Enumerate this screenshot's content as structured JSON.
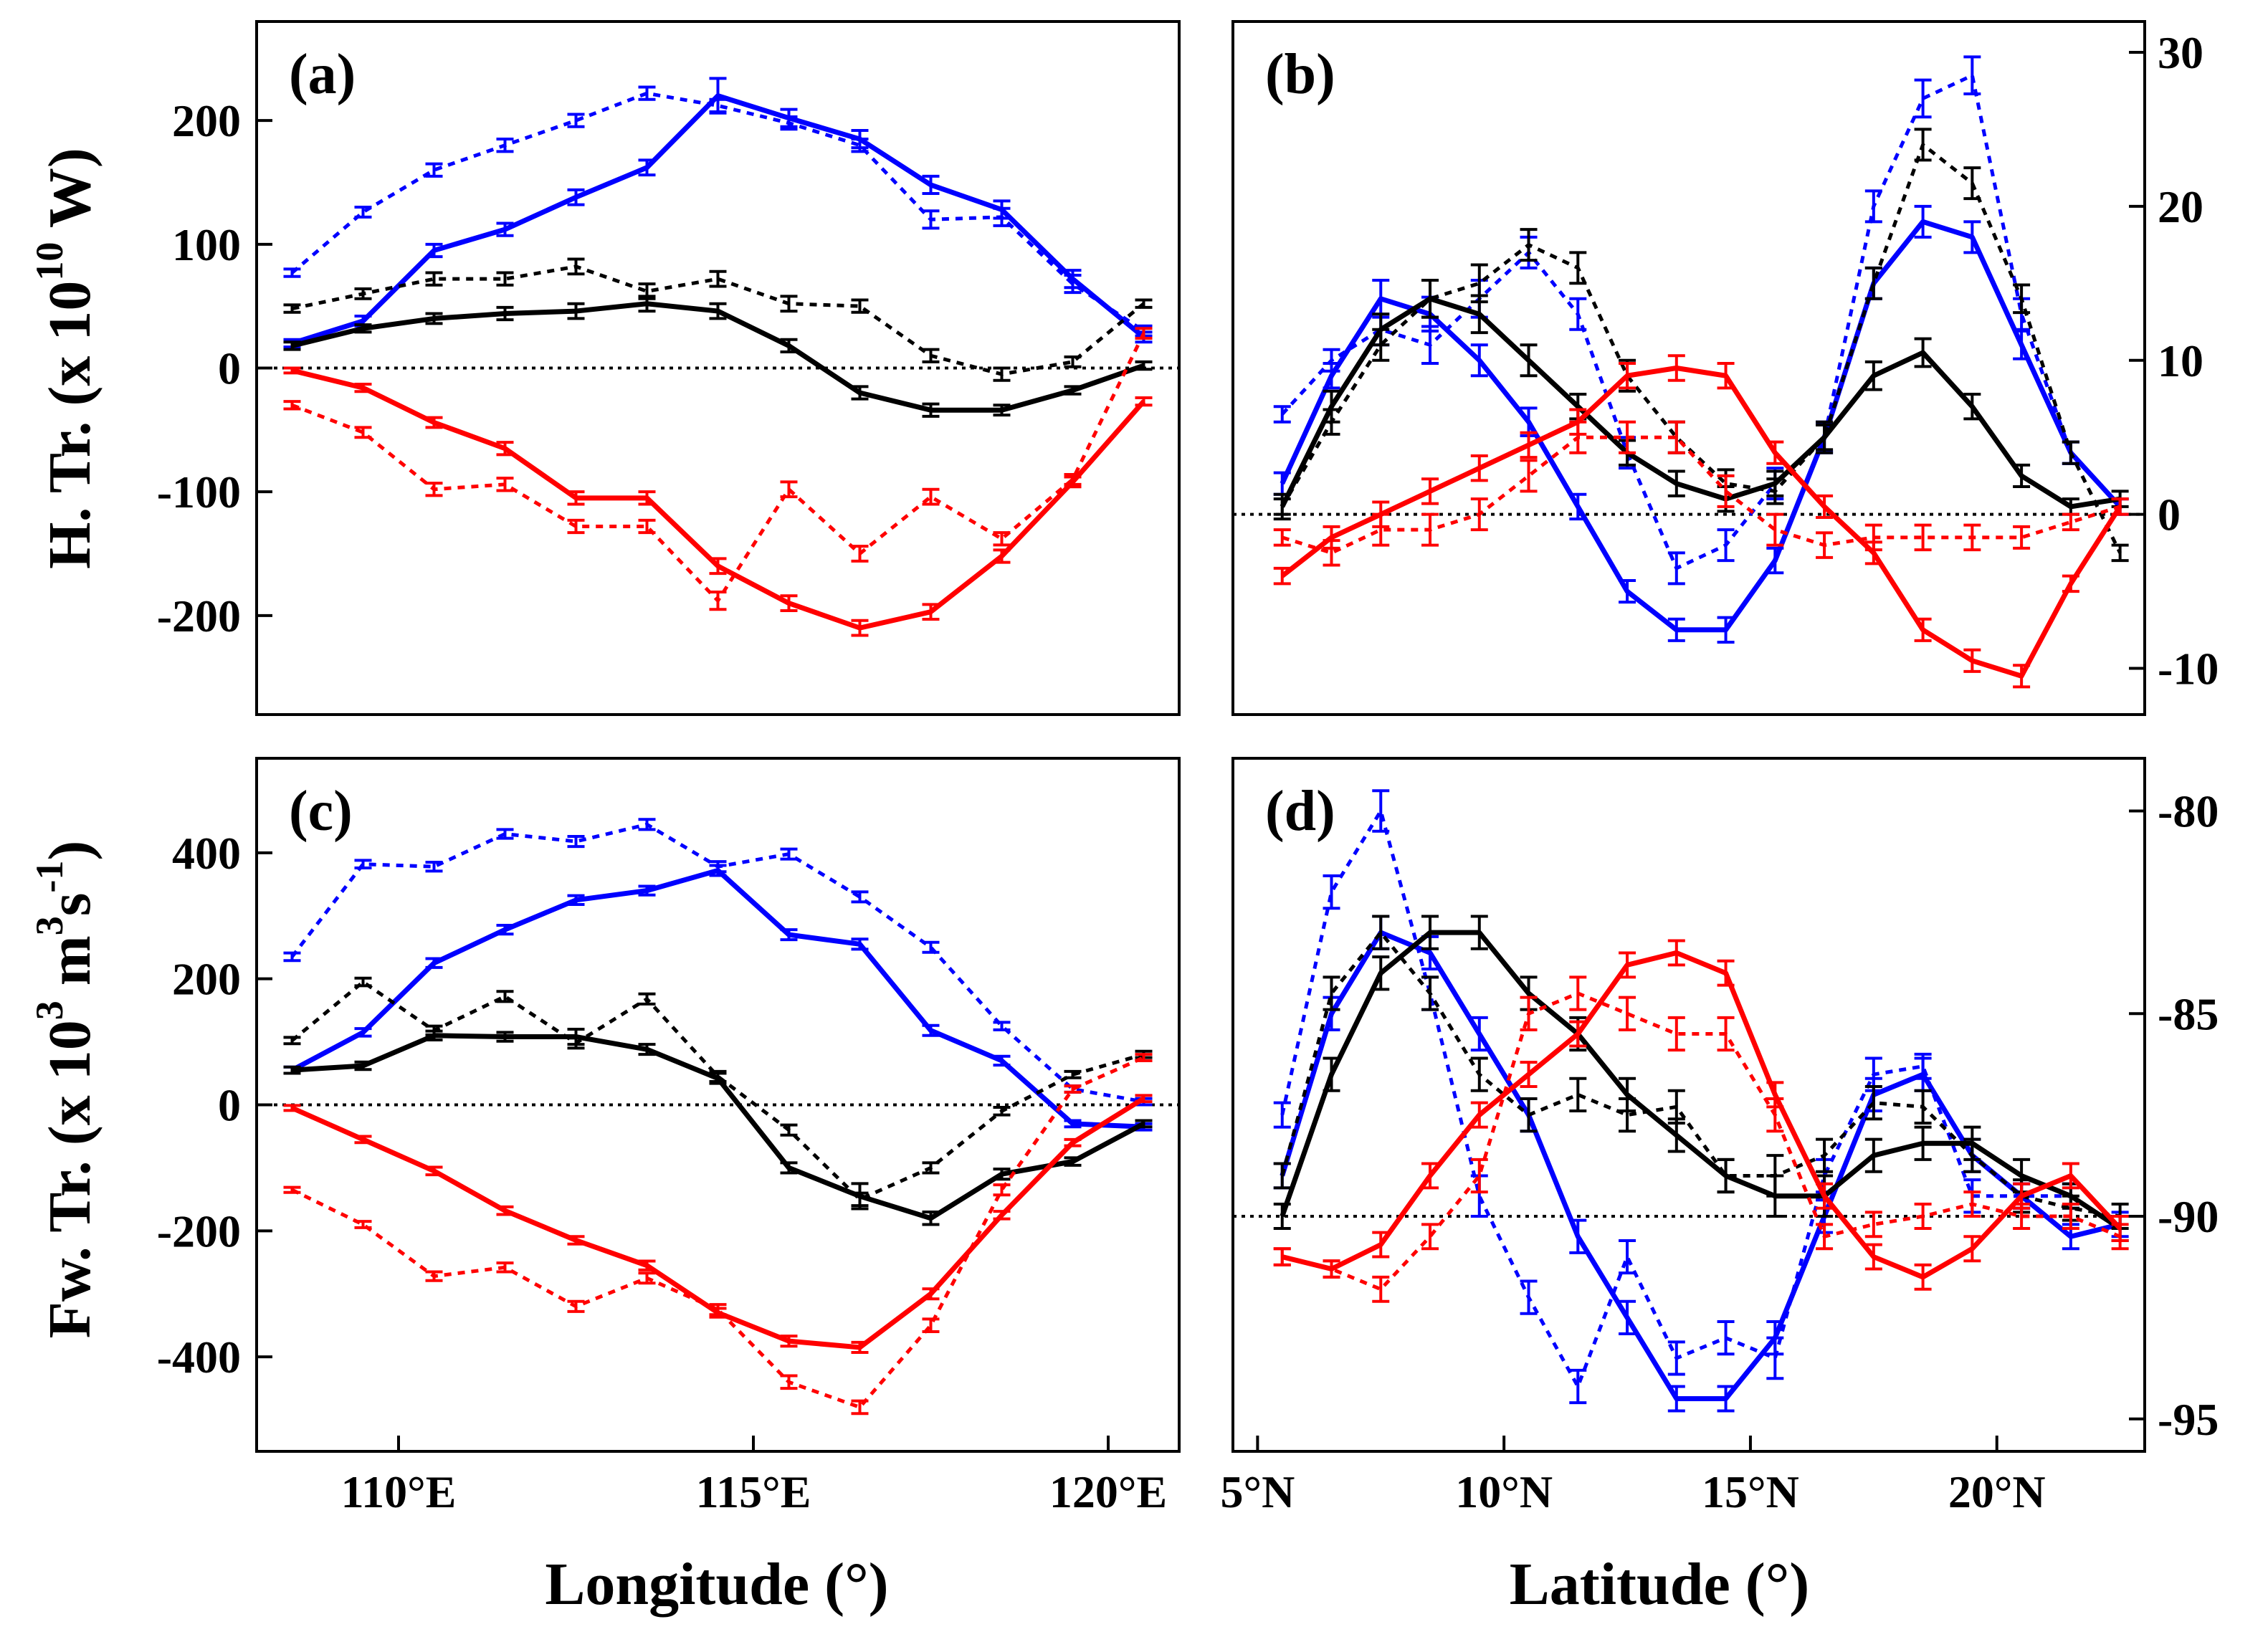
{
  "colors": {
    "blue": "#0000ff",
    "black": "#000000",
    "red": "#ff0000"
  },
  "axis_titles": {
    "y_top": "H. Tr. (x 10",
    "y_top_sup": "10",
    "y_top_end": " W)",
    "y_bottom_a": "Fw. Tr. (x 10",
    "y_bottom_sup1": "3",
    "y_bottom_b": " m",
    "y_bottom_sup2": "3",
    "y_bottom_c": "s",
    "y_bottom_sup3": "-1",
    "y_bottom_d": ")",
    "x_left": "Longitude (°)",
    "x_right": "Latitude (°)"
  },
  "chart_data": [
    {
      "panel": "(a)",
      "type": "line",
      "xlim": [
        108,
        121
      ],
      "ylim": [
        -280,
        280
      ],
      "yticks": [
        -200,
        -100,
        0,
        100,
        200
      ],
      "yticks_side": "left",
      "xticks": [],
      "zero_line": 0,
      "x": [
        108.5,
        109.5,
        110.5,
        111.5,
        112.5,
        113.5,
        114.5,
        115.5,
        116.5,
        117.5,
        118.5,
        119.5,
        120.5
      ],
      "series": [
        {
          "color": "blue",
          "style": "solid",
          "values": [
            20,
            38,
            95,
            112,
            138,
            162,
            220,
            202,
            185,
            148,
            128,
            72,
            25
          ],
          "err": [
            3,
            4,
            5,
            5,
            6,
            6,
            14,
            7,
            7,
            7,
            7,
            7,
            4
          ]
        },
        {
          "color": "blue",
          "style": "dotted",
          "values": [
            77,
            126,
            160,
            180,
            200,
            222,
            212,
            198,
            180,
            120,
            122,
            68,
            30
          ],
          "err": [
            3,
            4,
            5,
            5,
            5,
            5,
            5,
            5,
            5,
            7,
            7,
            7,
            4
          ]
        },
        {
          "color": "black",
          "style": "solid",
          "values": [
            18,
            32,
            40,
            44,
            46,
            52,
            46,
            18,
            -20,
            -34,
            -34,
            -18,
            2
          ],
          "err": [
            3,
            3,
            4,
            5,
            6,
            6,
            6,
            5,
            5,
            5,
            4,
            3,
            3
          ]
        },
        {
          "color": "black",
          "style": "dotted",
          "values": [
            48,
            60,
            72,
            72,
            82,
            62,
            72,
            52,
            50,
            10,
            -5,
            5,
            52
          ],
          "err": [
            3,
            4,
            5,
            5,
            6,
            6,
            6,
            6,
            5,
            5,
            5,
            4,
            3
          ]
        },
        {
          "color": "red",
          "style": "solid",
          "values": [
            -2,
            -16,
            -44,
            -65,
            -105,
            -105,
            -160,
            -190,
            -210,
            -197,
            -152,
            -92,
            -27
          ],
          "err": [
            2,
            3,
            4,
            5,
            5,
            5,
            6,
            6,
            6,
            6,
            5,
            4,
            3
          ]
        },
        {
          "color": "red",
          "style": "dotted",
          "values": [
            -30,
            -52,
            -98,
            -94,
            -128,
            -128,
            -188,
            -98,
            -150,
            -104,
            -138,
            -90,
            28
          ],
          "err": [
            3,
            4,
            5,
            5,
            5,
            5,
            7,
            6,
            6,
            6,
            5,
            4,
            4
          ]
        }
      ]
    },
    {
      "panel": "(b)",
      "type": "line",
      "xlim": [
        4.5,
        23
      ],
      "ylim": [
        -13,
        32
      ],
      "yticks": [
        -10,
        0,
        10,
        20,
        30
      ],
      "yticks_side": "right",
      "xticks": [],
      "zero_line": 0,
      "x": [
        5.5,
        6.5,
        7.5,
        8.5,
        9.5,
        10.5,
        11.5,
        12.5,
        13.5,
        14.5,
        15.5,
        16.5,
        17.5,
        18.5,
        19.5,
        20.5,
        21.5,
        22.5
      ],
      "series": [
        {
          "color": "blue",
          "style": "solid",
          "values": [
            2,
            9,
            14,
            13,
            10,
            6,
            0.5,
            -5,
            -7.5,
            -7.5,
            -3,
            5,
            15,
            19,
            18,
            11,
            4,
            0.5
          ],
          "err": [
            0.7,
            0.8,
            1.2,
            1.1,
            1,
            0.9,
            0.8,
            0.7,
            0.7,
            0.8,
            0.8,
            0.9,
            1,
            1,
            1,
            0.9,
            0.7,
            0.5
          ]
        },
        {
          "color": "blue",
          "style": "dotted",
          "values": [
            6.5,
            10,
            12,
            11,
            14,
            17,
            13,
            4,
            -3.5,
            -2,
            2,
            5,
            20,
            27,
            28.5,
            13,
            4,
            0.5
          ],
          "err": [
            0.5,
            0.7,
            1,
            1.2,
            1.2,
            1,
            1,
            1,
            1,
            1,
            1,
            1,
            1,
            1.2,
            1.2,
            1,
            0.7,
            0.5
          ]
        },
        {
          "color": "black",
          "style": "solid",
          "values": [
            0.5,
            7,
            12,
            14,
            13,
            10,
            7,
            4,
            2,
            1,
            2,
            5,
            9,
            10.5,
            7,
            2.5,
            0.5,
            1
          ],
          "err": [
            0.8,
            1,
            1,
            1.2,
            1.2,
            1,
            0.8,
            0.8,
            0.8,
            0.8,
            0.8,
            0.8,
            0.9,
            0.9,
            0.8,
            0.7,
            0.5,
            0.5
          ]
        },
        {
          "color": "black",
          "style": "dotted",
          "values": [
            0.5,
            6,
            11,
            14,
            15,
            17.5,
            16,
            9,
            5,
            2,
            1.5,
            5,
            15,
            24,
            21.5,
            14,
            4,
            -2.5
          ],
          "err": [
            0.5,
            0.8,
            1,
            1.2,
            1.2,
            1,
            1,
            1,
            1,
            0.9,
            0.8,
            1,
            1,
            1,
            1,
            0.9,
            0.7,
            0.5
          ]
        },
        {
          "color": "red",
          "style": "solid",
          "values": [
            -4,
            -1.5,
            0,
            1.5,
            3,
            4.5,
            6,
            9,
            9.5,
            9,
            4,
            0.5,
            -2.5,
            -7.5,
            -9.5,
            -10.5,
            -4.5,
            0.5
          ],
          "err": [
            0.5,
            0.7,
            0.8,
            0.8,
            0.8,
            0.8,
            0.8,
            0.8,
            0.8,
            0.8,
            0.7,
            0.7,
            0.7,
            0.7,
            0.7,
            0.7,
            0.5,
            0.5
          ]
        },
        {
          "color": "red",
          "style": "dotted",
          "values": [
            -1.5,
            -2.5,
            -1,
            -1,
            0,
            2.5,
            5,
            5,
            5,
            1.5,
            -1,
            -2,
            -1.5,
            -1.5,
            -1.5,
            -1.5,
            -0.5,
            0.5
          ],
          "err": [
            0.5,
            0.8,
            1,
            1,
            1,
            1,
            1,
            1,
            1,
            1,
            1,
            0.8,
            0.8,
            0.8,
            0.8,
            0.7,
            0.5,
            0.5
          ]
        }
      ]
    },
    {
      "panel": "(c)",
      "type": "line",
      "xlim": [
        108,
        121
      ],
      "ylim": [
        -550,
        550
      ],
      "yticks": [
        -400,
        -200,
        0,
        200,
        400
      ],
      "yticks_side": "left",
      "xticks": [
        110,
        115,
        120
      ],
      "xtick_labels": [
        "110°E",
        "115°E",
        "120°E"
      ],
      "zero_line": 0,
      "x": [
        108.5,
        109.5,
        110.5,
        111.5,
        112.5,
        113.5,
        114.5,
        115.5,
        116.5,
        117.5,
        118.5,
        119.5,
        120.5
      ],
      "series": [
        {
          "color": "blue",
          "style": "solid",
          "values": [
            55,
            115,
            225,
            278,
            325,
            340,
            372,
            270,
            255,
            118,
            70,
            -30,
            -35
          ],
          "err": [
            5,
            6,
            7,
            7,
            7,
            7,
            8,
            8,
            8,
            8,
            7,
            5,
            5
          ]
        },
        {
          "color": "blue",
          "style": "dotted",
          "values": [
            235,
            382,
            378,
            430,
            418,
            445,
            378,
            398,
            330,
            250,
            125,
            25,
            5
          ],
          "err": [
            6,
            6,
            7,
            7,
            8,
            8,
            8,
            8,
            8,
            8,
            6,
            5,
            5
          ]
        },
        {
          "color": "black",
          "style": "solid",
          "values": [
            55,
            62,
            110,
            108,
            108,
            88,
            42,
            -100,
            -145,
            -180,
            -110,
            -90,
            -30
          ],
          "err": [
            5,
            6,
            7,
            7,
            12,
            8,
            8,
            8,
            20,
            10,
            8,
            6,
            5
          ]
        },
        {
          "color": "black",
          "style": "dotted",
          "values": [
            102,
            195,
            118,
            172,
            98,
            168,
            45,
            -40,
            -150,
            -100,
            -10,
            48,
            80
          ],
          "err": [
            5,
            6,
            7,
            8,
            8,
            8,
            8,
            8,
            10,
            8,
            6,
            5,
            5
          ]
        },
        {
          "color": "red",
          "style": "solid",
          "values": [
            -5,
            -55,
            -105,
            -168,
            -215,
            -255,
            -330,
            -375,
            -385,
            -300,
            -175,
            -60,
            10
          ],
          "err": [
            4,
            5,
            6,
            6,
            6,
            7,
            7,
            8,
            8,
            8,
            6,
            5,
            5
          ]
        },
        {
          "color": "red",
          "style": "dotted",
          "values": [
            -135,
            -190,
            -272,
            -258,
            -320,
            -275,
            -325,
            -440,
            -480,
            -350,
            -135,
            25,
            75
          ],
          "err": [
            4,
            5,
            7,
            7,
            8,
            8,
            8,
            10,
            10,
            10,
            8,
            5,
            5
          ]
        }
      ]
    },
    {
      "panel": "(d)",
      "type": "line",
      "xlim": [
        4.5,
        23
      ],
      "ylim": [
        -95.8,
        -78.7
      ],
      "yticks": [
        -95,
        -90,
        -85,
        -80
      ],
      "yticks_side": "right",
      "xticks": [
        5,
        10,
        15,
        20
      ],
      "xtick_labels": [
        "5°N",
        "10°N",
        "15°N",
        "20°N"
      ],
      "zero_line": -90,
      "x": [
        5.5,
        6.5,
        7.5,
        8.5,
        9.5,
        10.5,
        11.5,
        12.5,
        13.5,
        14.5,
        15.5,
        16.5,
        17.5,
        18.5,
        19.5,
        20.5,
        21.5,
        22.5
      ],
      "series": [
        {
          "color": "blue",
          "style": "solid",
          "values": [
            -89,
            -85,
            -83,
            -83.5,
            -85.5,
            -87.5,
            -90.5,
            -92.5,
            -94.5,
            -94.5,
            -93,
            -90,
            -87,
            -86.5,
            -88.5,
            -89.5,
            -90.5,
            -90.2
          ],
          "err": [
            0.3,
            0.4,
            0.4,
            0.4,
            0.4,
            0.4,
            0.4,
            0.4,
            0.3,
            0.3,
            0.4,
            0.4,
            0.4,
            0.4,
            0.4,
            0.3,
            0.3,
            0.3
          ]
        },
        {
          "color": "blue",
          "style": "dotted",
          "values": [
            -87.5,
            -82,
            -80,
            -84.5,
            -89.5,
            -92,
            -94.2,
            -91,
            -93.5,
            -93,
            -93.5,
            -89,
            -86.5,
            -86.3,
            -89.5,
            -89.5,
            -89.5,
            -90.3
          ],
          "err": [
            0.3,
            0.4,
            0.5,
            0.4,
            0.5,
            0.4,
            0.4,
            0.4,
            0.4,
            0.4,
            0.5,
            0.4,
            0.4,
            0.3,
            0.4,
            0.3,
            0.3,
            0.3
          ]
        },
        {
          "color": "black",
          "style": "solid",
          "values": [
            -90,
            -86.5,
            -84,
            -83,
            -83,
            -84.5,
            -85.5,
            -87,
            -88,
            -89,
            -89.5,
            -89.5,
            -88.5,
            -88.2,
            -88.2,
            -89,
            -89.5,
            -90.3
          ],
          "err": [
            0.3,
            0.4,
            0.4,
            0.4,
            0.4,
            0.4,
            0.4,
            0.4,
            0.4,
            0.4,
            0.5,
            0.5,
            0.4,
            0.4,
            0.4,
            0.4,
            0.3,
            0.3
          ]
        },
        {
          "color": "black",
          "style": "dotted",
          "values": [
            -89,
            -84.5,
            -83,
            -84.5,
            -86.5,
            -87.5,
            -87,
            -87.5,
            -87.3,
            -89,
            -89,
            -88.5,
            -87.2,
            -87.3,
            -88.5,
            -89.5,
            -89.8,
            -90
          ],
          "err": [
            0.3,
            0.4,
            0.4,
            0.4,
            0.4,
            0.4,
            0.4,
            0.4,
            0.4,
            0.4,
            0.5,
            0.4,
            0.4,
            0.4,
            0.4,
            0.4,
            0.3,
            0.3
          ]
        },
        {
          "color": "red",
          "style": "solid",
          "values": [
            -91,
            -91.3,
            -90.7,
            -89,
            -87.5,
            -86.5,
            -85.5,
            -83.8,
            -83.5,
            -84,
            -87,
            -89.5,
            -91,
            -91.5,
            -90.8,
            -89.5,
            -89,
            -90.3
          ],
          "err": [
            0.2,
            0.2,
            0.3,
            0.3,
            0.3,
            0.3,
            0.3,
            0.3,
            0.3,
            0.3,
            0.3,
            0.3,
            0.3,
            0.3,
            0.3,
            0.3,
            0.3,
            0.3
          ]
        },
        {
          "color": "red",
          "style": "dotted",
          "values": [
            -91,
            -91.3,
            -91.8,
            -90.5,
            -89,
            -85,
            -84.5,
            -85,
            -85.5,
            -85.5,
            -87.5,
            -90.5,
            -90.2,
            -90,
            -89.7,
            -90,
            -90,
            -90.5
          ],
          "err": [
            0.2,
            0.2,
            0.3,
            0.3,
            0.4,
            0.4,
            0.4,
            0.4,
            0.4,
            0.4,
            0.4,
            0.3,
            0.3,
            0.3,
            0.3,
            0.3,
            0.3,
            0.3
          ]
        }
      ]
    }
  ]
}
